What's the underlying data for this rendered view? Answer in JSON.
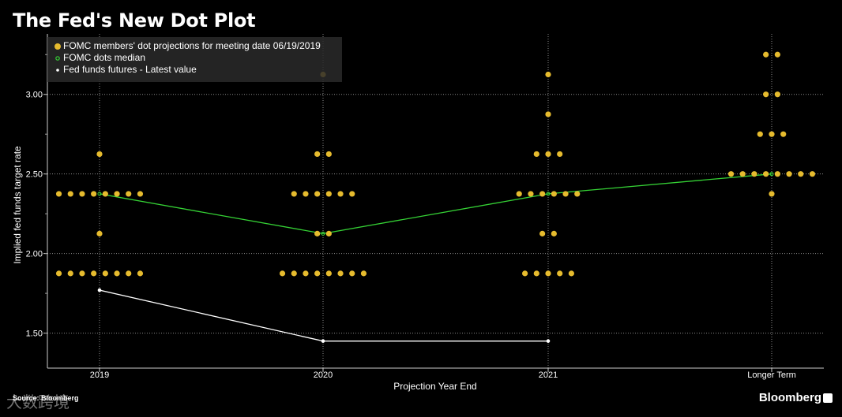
{
  "title": "The Fed's New Dot Plot",
  "source": "Source: Bloomberg",
  "brand": "Bloomberg",
  "watermark": "大数跨境",
  "colors": {
    "dots": "#e6bb2e",
    "median": "#35d235",
    "futures": "#ffffff",
    "grid": "#8a8a8a",
    "background": "#000000"
  },
  "chart_data": {
    "type": "scatter",
    "xlabel": "Projection Year End",
    "ylabel": "Implied fed funds target rate",
    "categories": [
      "2019",
      "2020",
      "2021",
      "Longer Term"
    ],
    "ylim": [
      1.28,
      3.38
    ],
    "yticks": [
      "1.50",
      "2.00",
      "2.50",
      "3.00"
    ],
    "ytick_values": [
      1.5,
      2.0,
      2.5,
      3.0
    ],
    "legend": [
      "FOMC members' dot projections for meeting date 06/19/2019",
      "FOMC dots median",
      "Fed funds futures - Latest value"
    ],
    "series": [
      {
        "name": "FOMC members' dot projections for meeting date 06/19/2019",
        "points": [
          {
            "category": "2019",
            "values": [
              2.625,
              2.375,
              2.375,
              2.375,
              2.375,
              2.375,
              2.375,
              2.375,
              2.375,
              2.125,
              1.875,
              1.875,
              1.875,
              1.875,
              1.875,
              1.875,
              1.875,
              1.875
            ]
          },
          {
            "category": "2020",
            "values": [
              3.125,
              2.625,
              2.625,
              2.375,
              2.375,
              2.375,
              2.375,
              2.375,
              2.375,
              2.125,
              2.125,
              1.875,
              1.875,
              1.875,
              1.875,
              1.875,
              1.875,
              1.875,
              1.875
            ]
          },
          {
            "category": "2021",
            "values": [
              3.125,
              2.875,
              2.625,
              2.625,
              2.625,
              2.375,
              2.375,
              2.375,
              2.375,
              2.375,
              2.375,
              2.125,
              2.125,
              1.875,
              1.875,
              1.875,
              1.875,
              1.875
            ]
          },
          {
            "category": "Longer Term",
            "values": [
              3.25,
              3.25,
              3.0,
              3.0,
              2.75,
              2.75,
              2.75,
              2.5,
              2.5,
              2.5,
              2.5,
              2.5,
              2.5,
              2.5,
              2.5,
              2.375
            ]
          }
        ]
      },
      {
        "name": "FOMC dots median",
        "categories": [
          "2019",
          "2020",
          "2021",
          "Longer Term"
        ],
        "values": [
          2.375,
          2.125,
          2.375,
          2.5
        ]
      },
      {
        "name": "Fed funds futures - Latest value",
        "categories": [
          "2019",
          "2020",
          "2021"
        ],
        "values": [
          1.77,
          1.45,
          1.45
        ]
      }
    ]
  }
}
